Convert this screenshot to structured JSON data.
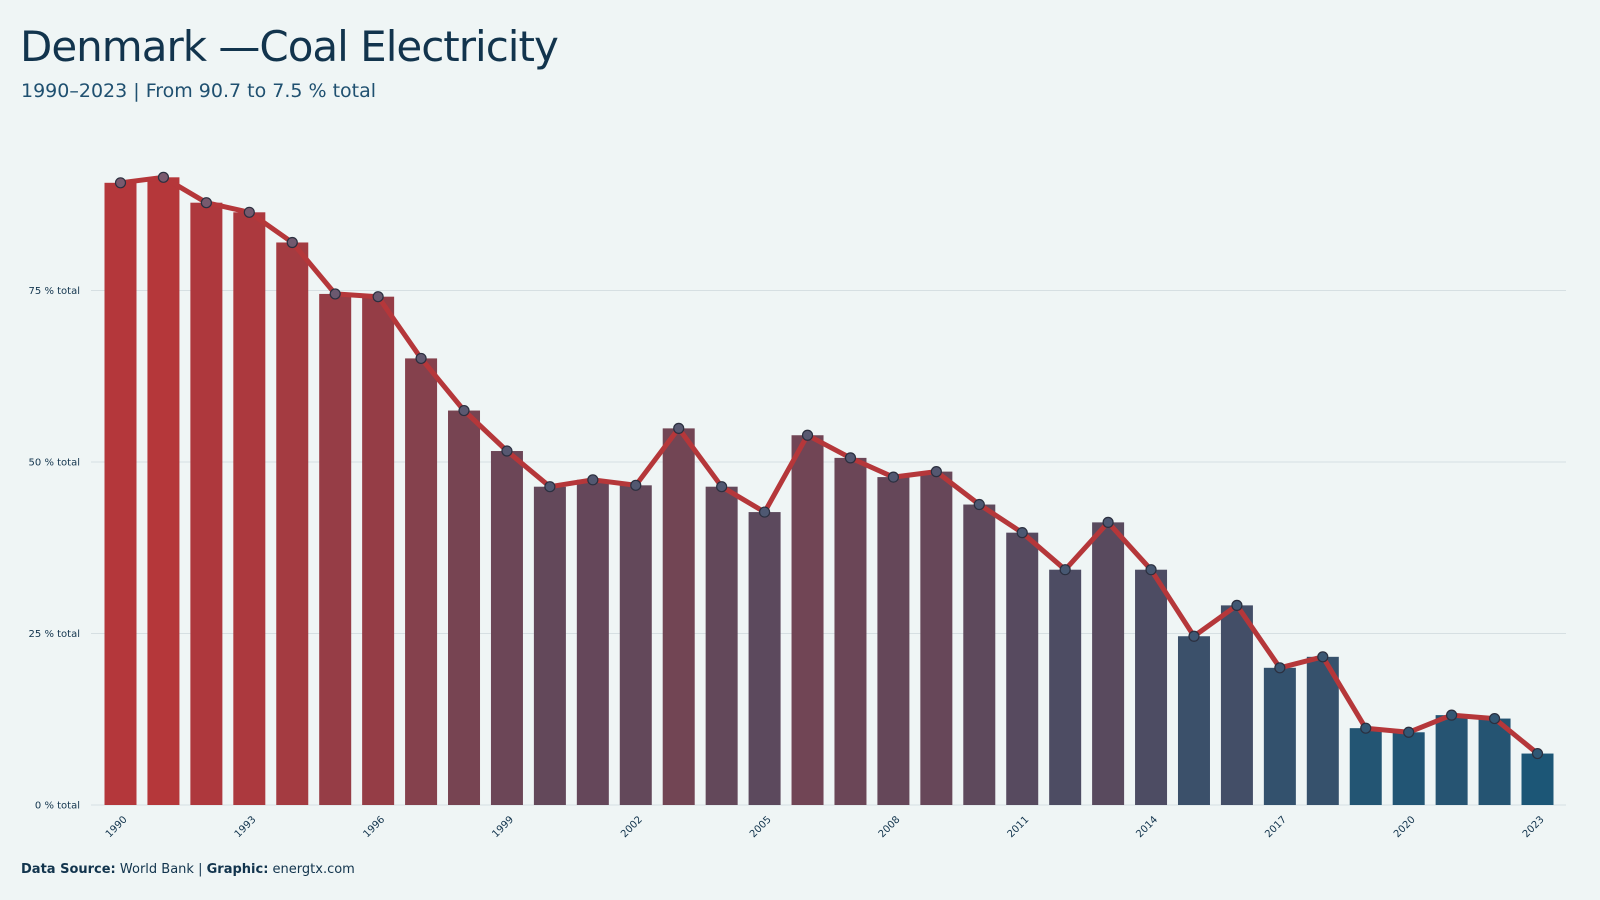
{
  "header": {
    "title": "Denmark —Coal Electricity",
    "subtitle": "1990–2023 | From 90.7 to 7.5 % total"
  },
  "footer": {
    "source_label": "Data Source:",
    "source_value": "World Bank",
    "separator": "|",
    "graphic_label": "Graphic:",
    "graphic_value": "energtx.com"
  },
  "colors": {
    "start": "#b5373a",
    "end": "#1c5676",
    "line": "#b5373a",
    "grid": "#d6dfe2",
    "text": "#12344d"
  },
  "chart_data": {
    "type": "bar",
    "title": "Denmark —Coal Electricity",
    "subtitle": "1990–2023 | From 90.7 to 7.5 % total",
    "xlabel": "",
    "ylabel": "",
    "ylim": [
      0,
      100
    ],
    "grid": true,
    "yticks": [
      0,
      25,
      50,
      75
    ],
    "ytick_labels": [
      "0 % total",
      "25 % total",
      "50 % total",
      "75 % total"
    ],
    "xtick_labels": [
      "1990",
      "1993",
      "1996",
      "1999",
      "2002",
      "2005",
      "2008",
      "2011",
      "2014",
      "2017",
      "2020",
      "2023"
    ],
    "categories": [
      1990,
      1991,
      1992,
      1993,
      1994,
      1995,
      1996,
      1997,
      1998,
      1999,
      2000,
      2001,
      2002,
      2003,
      2004,
      2005,
      2006,
      2007,
      2008,
      2009,
      2010,
      2011,
      2012,
      2013,
      2014,
      2015,
      2016,
      2017,
      2018,
      2019,
      2020,
      2021,
      2022,
      2023
    ],
    "values": [
      90.7,
      91.5,
      87.8,
      86.4,
      82.0,
      74.5,
      74.1,
      65.1,
      57.5,
      51.6,
      46.4,
      47.4,
      46.6,
      54.9,
      46.4,
      42.7,
      53.9,
      50.6,
      47.8,
      48.6,
      43.8,
      39.7,
      34.3,
      41.2,
      34.3,
      24.6,
      29.1,
      20.0,
      21.6,
      11.2,
      10.6,
      13.1,
      12.6,
      7.5
    ]
  }
}
